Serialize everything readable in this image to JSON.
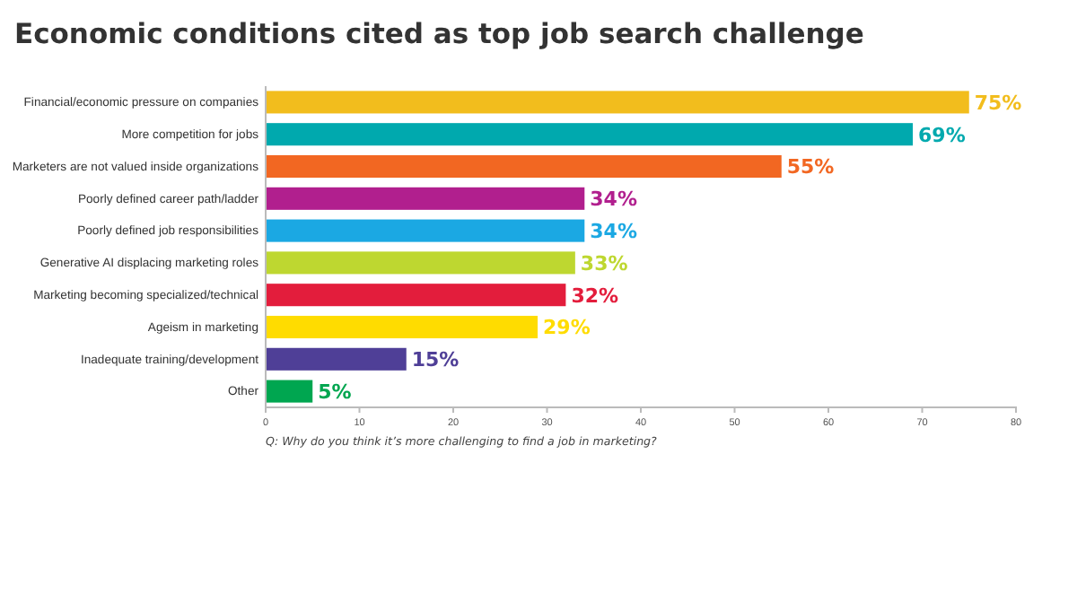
{
  "chart_data": {
    "type": "bar",
    "orientation": "horizontal",
    "title": "Economic conditions cited as top job search challenge",
    "categories": [
      "Financial/economic pressure on companies",
      "More competition for jobs",
      "Marketers are not valued inside organizations",
      "Poorly defined career path/ladder",
      "Poorly defined job responsibilities",
      "Generative AI displacing marketing roles",
      "Marketing becoming specialized/technical",
      "Ageism in marketing",
      "Inadequate training/development",
      "Other"
    ],
    "values": [
      75,
      69,
      55,
      34,
      34,
      33,
      32,
      29,
      15,
      5
    ],
    "colors": [
      "#f2bd1d",
      "#00a9ae",
      "#f26722",
      "#b11f8e",
      "#1ba8e3",
      "#bed730",
      "#e31d3c",
      "#ffdc00",
      "#4f3f97",
      "#00a650"
    ],
    "value_labels": [
      "75%",
      "69%",
      "55%",
      "34%",
      "34%",
      "33%",
      "32%",
      "29%",
      "15%",
      "5%"
    ],
    "xlim": [
      0,
      80
    ],
    "xticks": [
      0,
      10,
      20,
      30,
      40,
      50,
      60,
      70,
      80
    ],
    "grid": false,
    "annotations": [
      "Q: Why do you think it’s more challenging to find a job in marketing?"
    ]
  }
}
